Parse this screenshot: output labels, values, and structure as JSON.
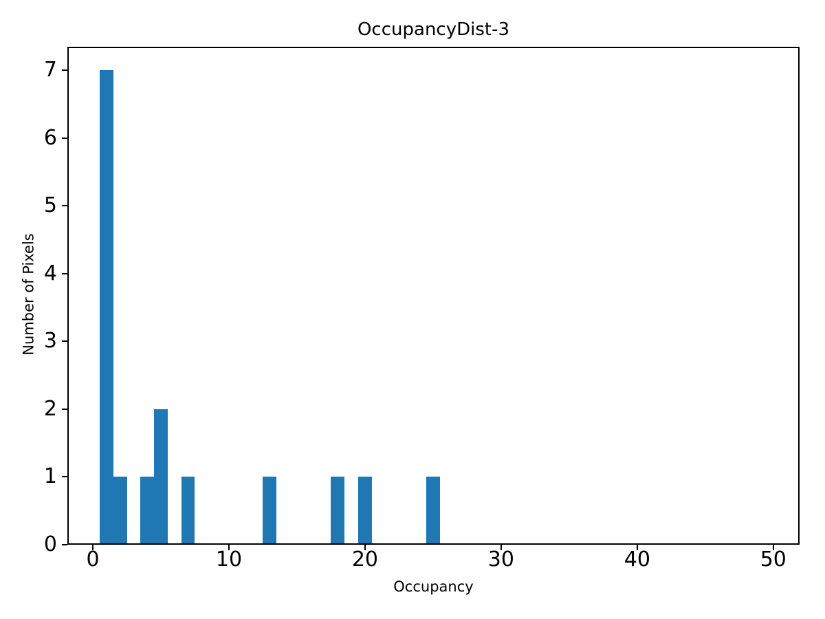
{
  "chart_data": {
    "type": "bar",
    "title": "OccupancyDist-3",
    "xlabel": "Occupancy",
    "ylabel": "Number of Pixels",
    "bar_color": "#1f77b4",
    "axis_color": "#000000",
    "text_color": "#000000",
    "xlim": [
      -1.87,
      51.93
    ],
    "ylim": [
      0,
      7.35
    ],
    "xticks": [
      0,
      10,
      20,
      30,
      40,
      50
    ],
    "yticks": [
      0,
      1,
      2,
      3,
      4,
      5,
      6,
      7
    ],
    "bin_width": 1,
    "bins": [
      {
        "center": 1,
        "count": 7
      },
      {
        "center": 2,
        "count": 1
      },
      {
        "center": 4,
        "count": 1
      },
      {
        "center": 5,
        "count": 2
      },
      {
        "center": 7,
        "count": 1
      },
      {
        "center": 13,
        "count": 1
      },
      {
        "center": 18,
        "count": 1
      },
      {
        "center": 20,
        "count": 1
      },
      {
        "center": 25,
        "count": 1
      }
    ],
    "grid": false,
    "legend": null
  }
}
